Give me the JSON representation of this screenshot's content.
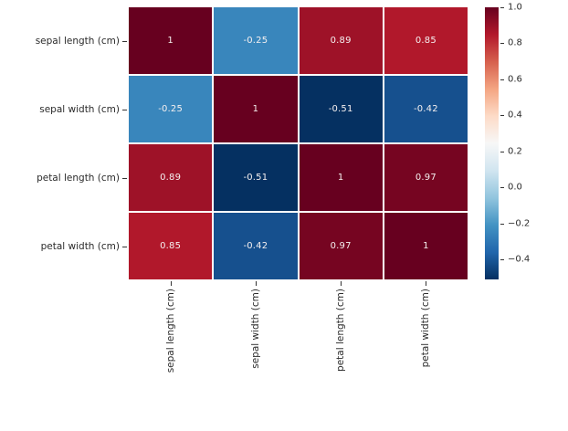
{
  "figure": {
    "background_color": "#ffffff",
    "text_color": "#2b2b2b"
  },
  "chart_data": {
    "type": "heatmap",
    "title": "",
    "xlabel": "",
    "ylabel": "",
    "x_categories": [
      "sepal length (cm)",
      "sepal width (cm)",
      "petal length (cm)",
      "petal width (cm)"
    ],
    "y_categories": [
      "sepal length (cm)",
      "sepal width (cm)",
      "petal length (cm)",
      "petal width (cm)"
    ],
    "matrix": [
      [
        1,
        -0.25,
        0.89,
        0.85
      ],
      [
        -0.25,
        1,
        -0.51,
        -0.42
      ],
      [
        0.89,
        -0.51,
        1,
        0.97
      ],
      [
        0.85,
        -0.42,
        0.97,
        1
      ]
    ],
    "cell_labels": [
      [
        "1",
        "-0.25",
        "0.89",
        "0.85"
      ],
      [
        "-0.25",
        "1",
        "-0.51",
        "-0.42"
      ],
      [
        "0.89",
        "-0.51",
        "1",
        "0.97"
      ],
      [
        "0.85",
        "-0.42",
        "0.97",
        "1"
      ]
    ],
    "cell_colors": [
      [
        "#67001f",
        "#3986bc",
        "#9e1228",
        "#b1182b"
      ],
      [
        "#3986bc",
        "#67001f",
        "#053061",
        "#16508e"
      ],
      [
        "#9e1228",
        "#053061",
        "#67001f",
        "#760521"
      ],
      [
        "#b1182b",
        "#16508e",
        "#760521",
        "#67001f"
      ]
    ],
    "colormap": "RdBu_r",
    "vmin": -0.51,
    "vmax": 1.0,
    "grid_line_color": "#ffffff",
    "annotation_text_color": "#f5f0f0",
    "legend_position": "right",
    "colorbar": {
      "gradient_stops_top_to_bottom": [
        "#67001f",
        "#b2182b",
        "#d6604d",
        "#f4a582",
        "#fddbc7",
        "#f7f7f7",
        "#d1e5f0",
        "#92c5de",
        "#4393c3",
        "#2166ac",
        "#053061"
      ],
      "ticks": [
        {
          "label": "1.0",
          "value": 1.0
        },
        {
          "label": "0.8",
          "value": 0.8
        },
        {
          "label": "0.6",
          "value": 0.6
        },
        {
          "label": "0.4",
          "value": 0.4
        },
        {
          "label": "0.2",
          "value": 0.2
        },
        {
          "label": "0.0",
          "value": 0.0
        },
        {
          "label": "−0.2",
          "value": -0.2
        },
        {
          "label": "−0.4",
          "value": -0.4
        }
      ]
    }
  }
}
